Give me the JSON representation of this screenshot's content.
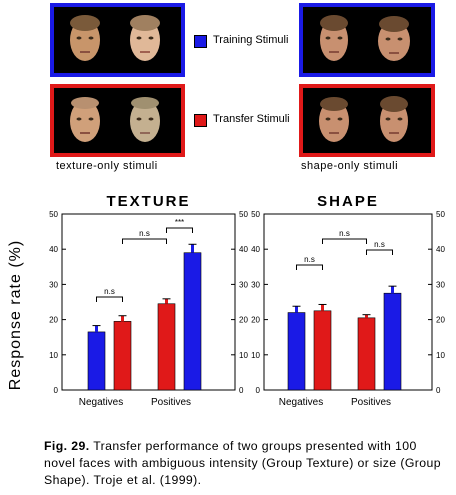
{
  "figure": {
    "legend": {
      "training_label": "Training Stimuli",
      "transfer_label": "Transfer Stimuli",
      "training_color": "#1a1ae6",
      "transfer_color": "#e01919"
    },
    "stimuli_captions": {
      "left": "texture-only stimuli",
      "right": "shape-only stimuli"
    }
  },
  "chart_data": [
    {
      "type": "bar",
      "title": "TEXTURE",
      "ylabel": "Response rate (%)",
      "ylim": [
        0,
        50
      ],
      "yticks": [
        "0",
        "10",
        "20",
        "30",
        "40",
        "50"
      ],
      "categories": [
        "Negatives",
        "Positives"
      ],
      "bars": [
        {
          "category": "Negatives",
          "stimulus": "Training",
          "color": "#1a1ae6",
          "value": 16.5,
          "error": 1.8
        },
        {
          "category": "Negatives",
          "stimulus": "Transfer",
          "color": "#e01919",
          "value": 19.5,
          "error": 1.6
        },
        {
          "category": "Positives",
          "stimulus": "Transfer",
          "color": "#e01919",
          "value": 24.5,
          "error": 1.4
        },
        {
          "category": "Positives",
          "stimulus": "Training",
          "color": "#1a1ae6",
          "value": 39.0,
          "error": 2.4
        }
      ],
      "annotations": [
        "n.s",
        "n.s",
        "***"
      ]
    },
    {
      "type": "bar",
      "title": "SHAPE",
      "ylim": [
        0,
        50
      ],
      "yticks": [
        "0",
        "10",
        "20",
        "30",
        "40",
        "50"
      ],
      "categories": [
        "Negatives",
        "Positives"
      ],
      "bars": [
        {
          "category": "Negatives",
          "stimulus": "Training",
          "color": "#1a1ae6",
          "value": 22.0,
          "error": 1.8
        },
        {
          "category": "Negatives",
          "stimulus": "Transfer",
          "color": "#e01919",
          "value": 22.5,
          "error": 1.8
        },
        {
          "category": "Positives",
          "stimulus": "Transfer",
          "color": "#e01919",
          "value": 20.5,
          "error": 0.9
        },
        {
          "category": "Positives",
          "stimulus": "Training",
          "color": "#1a1ae6",
          "value": 27.5,
          "error": 2.0
        }
      ],
      "annotations": [
        "n.s",
        "n.s",
        "n.s"
      ]
    }
  ],
  "caption": {
    "label": "Fig. 29.",
    "text": "Transfer performance of two groups presented with 100 novel faces with ambiguous intensity (Group Texture) or size (Group Shape). Troje et al. (1999)."
  }
}
